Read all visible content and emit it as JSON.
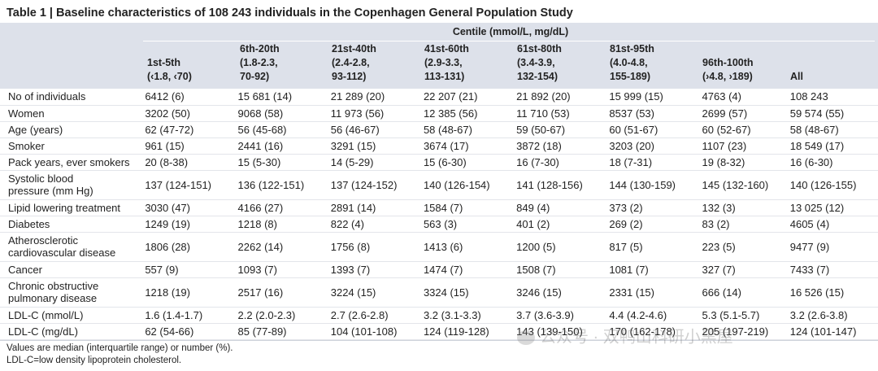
{
  "title": "Table 1 | Baseline characteristics of 108 243 individuals in the Copenhagen General Population Study",
  "header": {
    "centile_label": "Centile (mmol/L, mg/dL)",
    "columns": [
      {
        "l1": "1st-5th",
        "l2": "(‹1.8, ‹70)",
        "l3": ""
      },
      {
        "l1": "6th-20th",
        "l2": "(1.8-2.3,",
        "l3": "70-92)"
      },
      {
        "l1": "21st-40th",
        "l2": "(2.4-2.8,",
        "l3": "93-112)"
      },
      {
        "l1": "41st-60th",
        "l2": "(2.9-3.3,",
        "l3": "113-131)"
      },
      {
        "l1": "61st-80th",
        "l2": "(3.4-3.9,",
        "l3": "132-154)"
      },
      {
        "l1": "81st-95th",
        "l2": "(4.0-4.8,",
        "l3": "155-189)"
      },
      {
        "l1": "96th-100th",
        "l2": "(›4.8, ›189)",
        "l3": ""
      },
      {
        "l1": "All",
        "l2": "",
        "l3": ""
      }
    ]
  },
  "rows": [
    {
      "label": "No of individuals",
      "values": [
        "6412 (6)",
        "15 681 (14)",
        "21 289 (20)",
        "22 207 (21)",
        "21 892 (20)",
        "15 999 (15)",
        "4763 (4)",
        "108 243"
      ]
    },
    {
      "label": "Women",
      "values": [
        "3202 (50)",
        "9068 (58)",
        "11 973 (56)",
        "12 385 (56)",
        "11 710 (53)",
        "8537 (53)",
        "2699 (57)",
        "59 574 (55)"
      ]
    },
    {
      "label": "Age (years)",
      "values": [
        "62 (47-72)",
        "56 (45-68)",
        "56 (46-67)",
        "58 (48-67)",
        "59 (50-67)",
        "60 (51-67)",
        "60 (52-67)",
        "58 (48-67)"
      ]
    },
    {
      "label": "Smoker",
      "values": [
        "961 (15)",
        "2441 (16)",
        "3291 (15)",
        "3674 (17)",
        "3872 (18)",
        "3203 (20)",
        "1107 (23)",
        "18 549 (17)"
      ]
    },
    {
      "label": "Pack years, ever smokers",
      "values": [
        "20 (8-38)",
        "15 (5-30)",
        "14 (5-29)",
        "15 (6-30)",
        "16 (7-30)",
        "18 (7-31)",
        "19 (8-32)",
        "16 (6-30)"
      ]
    },
    {
      "label": "Systolic blood",
      "label2": "pressure (mm Hg)",
      "values": [
        "137 (124-151)",
        "136 (122-151)",
        "137 (124-152)",
        "140 (126-154)",
        "141 (128-156)",
        "144 (130-159)",
        "145 (132-160)",
        "140 (126-155)"
      ]
    },
    {
      "label": "Lipid lowering treatment",
      "values": [
        "3030 (47)",
        "4166 (27)",
        "2891 (14)",
        "1584 (7)",
        "849 (4)",
        "373 (2)",
        "132 (3)",
        "13 025 (12)"
      ]
    },
    {
      "label": "Diabetes",
      "values": [
        "1249 (19)",
        "1218 (8)",
        "822 (4)",
        "563 (3)",
        "401 (2)",
        "269 (2)",
        "83 (2)",
        "4605 (4)"
      ]
    },
    {
      "label": "Atherosclerotic",
      "label2": "cardiovascular disease",
      "values": [
        "1806 (28)",
        "2262 (14)",
        "1756 (8)",
        "1413 (6)",
        "1200 (5)",
        "817 (5)",
        "223 (5)",
        "9477 (9)"
      ]
    },
    {
      "label": "Cancer",
      "values": [
        "557 (9)",
        "1093 (7)",
        "1393 (7)",
        "1474 (7)",
        "1508 (7)",
        "1081 (7)",
        "327 (7)",
        "7433 (7)"
      ]
    },
    {
      "label": "Chronic obstructive",
      "label2": "pulmonary disease",
      "values": [
        "1218 (19)",
        "2517 (16)",
        "3224 (15)",
        "3324 (15)",
        "3246 (15)",
        "2331 (15)",
        "666 (14)",
        "16 526 (15)"
      ]
    },
    {
      "label": "LDL-C (mmol/L)",
      "values": [
        "1.6 (1.4-1.7)",
        "2.2 (2.0-2.3)",
        "2.7 (2.6-2.8)",
        "3.2 (3.1-3.3)",
        "3.7 (3.6-3.9)",
        "4.4 (4.2-4.6)",
        "5.3 (5.1-5.7)",
        "3.2 (2.6-3.8)"
      ]
    },
    {
      "label": "LDL-C (mg/dL)",
      "values": [
        "62 (54-66)",
        "85 (77-89)",
        "104 (101-108)",
        "124 (119-128)",
        "143 (139-150)",
        "170 (162-178)",
        "205 (197-219)",
        "124 (101-147)"
      ]
    }
  ],
  "footnotes": [
    "Values are median (interquartile range) or number (%).",
    "LDL-C=low density lipoprotein cholesterol."
  ],
  "watermark": "公众号 · 双鸭山科研小黑屋",
  "colors": {
    "header_band": "#dde1ea",
    "row_rule": "#e3e5ea",
    "text": "#222222"
  }
}
